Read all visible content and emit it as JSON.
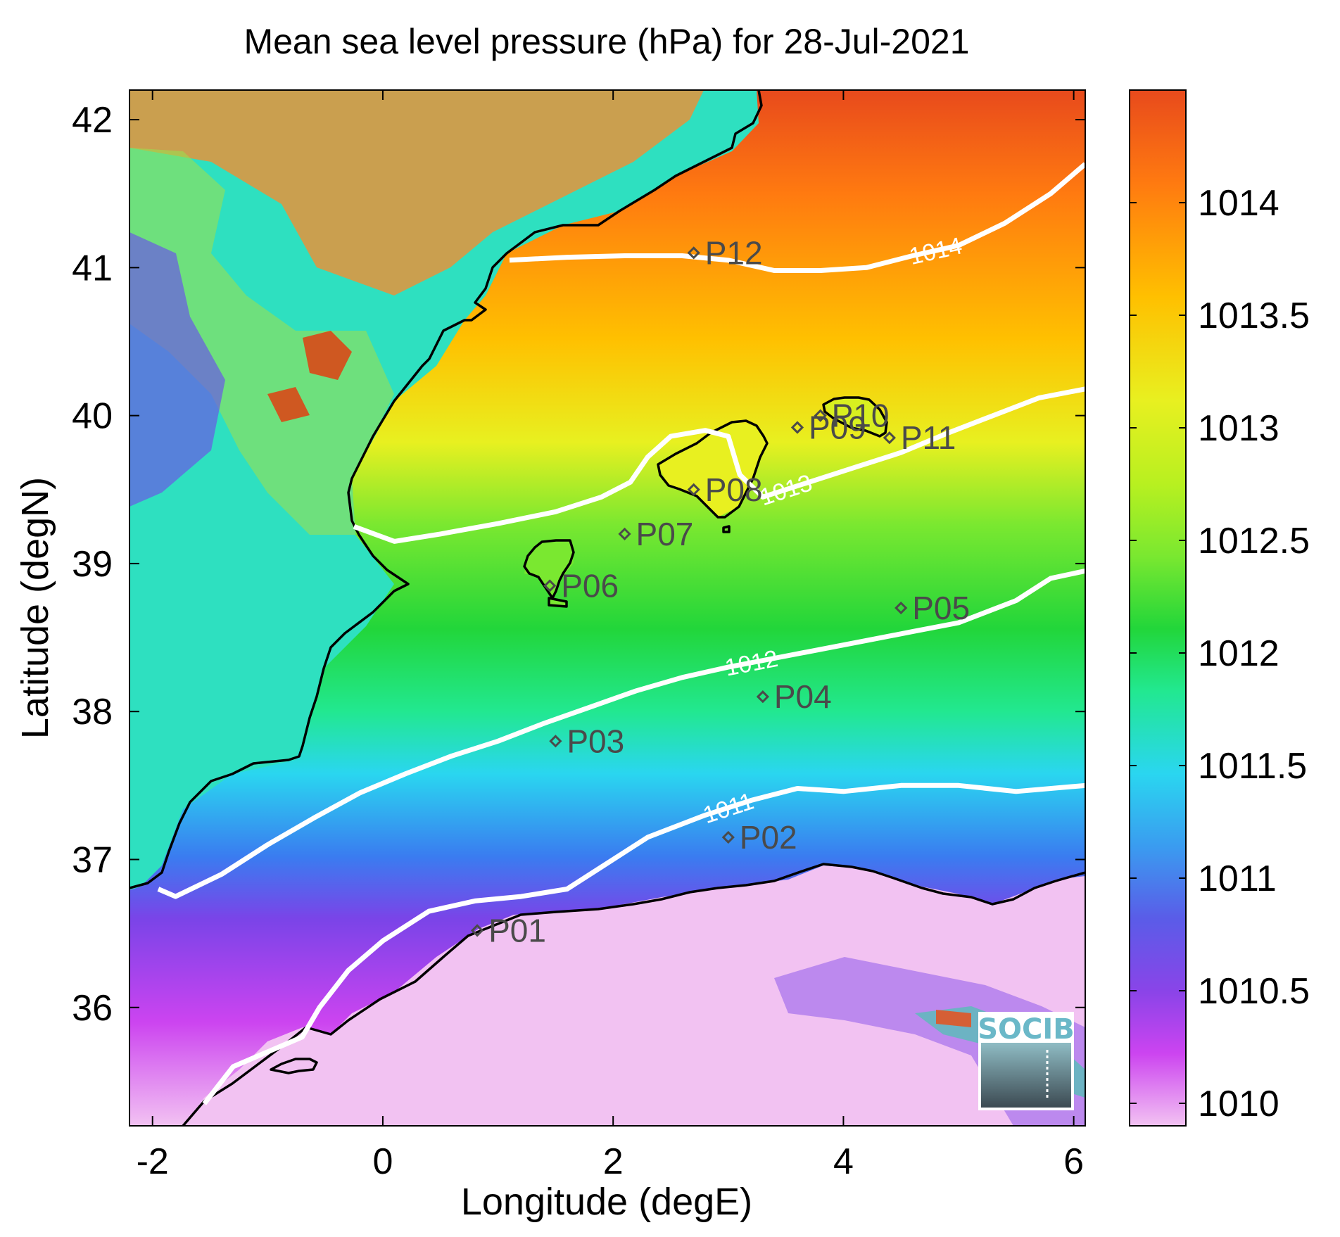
{
  "chart_data": {
    "type": "heatmap",
    "title": "Mean sea level pressure (hPa) for 28-Jul-2021",
    "xlabel": "Longitude (degE)",
    "ylabel": "Latitude (degN)",
    "xlim": [
      -2.2,
      6.1
    ],
    "ylim": [
      35.2,
      42.2
    ],
    "x_ticks": [
      -2,
      0,
      2,
      4,
      6
    ],
    "y_ticks": [
      36,
      37,
      38,
      39,
      40,
      41,
      42
    ],
    "x_tick_labels": [
      "-2",
      "0",
      "2",
      "4",
      "6"
    ],
    "y_tick_labels": [
      "36",
      "37",
      "38",
      "39",
      "40",
      "41",
      "42"
    ],
    "colorbar": {
      "range": [
        1009.9,
        1014.5
      ],
      "ticks": [
        1010,
        1010.5,
        1011,
        1011.5,
        1012,
        1012.5,
        1013,
        1013.5,
        1014
      ],
      "tick_labels": [
        "1010",
        "1010.5",
        "1011",
        "1011.5",
        "1012",
        "1012.5",
        "1013",
        "1013.5",
        "1014"
      ]
    },
    "colormap": [
      "#f2c2f2",
      "#cc44f0",
      "#7a44e8",
      "#3a7cf0",
      "#2ad6f0",
      "#22e890",
      "#22d63a",
      "#7ae830",
      "#e8f020",
      "#ffc000",
      "#ff7a10",
      "#e84a1c"
    ],
    "contours": [
      {
        "level": 1011,
        "label": "1011",
        "points": [
          [
            -1.55,
            35.35
          ],
          [
            -1.3,
            35.6
          ],
          [
            -1.0,
            35.7
          ],
          [
            -0.7,
            35.8
          ],
          [
            -0.55,
            36.0
          ],
          [
            -0.3,
            36.25
          ],
          [
            0,
            36.45
          ],
          [
            0.4,
            36.65
          ],
          [
            0.8,
            36.72
          ],
          [
            1.2,
            36.75
          ],
          [
            1.6,
            36.8
          ],
          [
            1.9,
            36.95
          ],
          [
            2.3,
            37.15
          ],
          [
            2.8,
            37.3
          ],
          [
            3.2,
            37.4
          ],
          [
            3.6,
            37.48
          ],
          [
            4.0,
            37.46
          ],
          [
            4.5,
            37.5
          ],
          [
            5.0,
            37.5
          ],
          [
            5.5,
            37.46
          ],
          [
            6.1,
            37.5
          ]
        ]
      },
      {
        "level": 1012,
        "label": "1012",
        "points": [
          [
            -1.95,
            36.8
          ],
          [
            -1.8,
            36.75
          ],
          [
            -1.4,
            36.9
          ],
          [
            -1.0,
            37.1
          ],
          [
            -0.6,
            37.28
          ],
          [
            -0.2,
            37.45
          ],
          [
            0.2,
            37.58
          ],
          [
            0.6,
            37.7
          ],
          [
            1.0,
            37.8
          ],
          [
            1.4,
            37.92
          ],
          [
            1.8,
            38.03
          ],
          [
            2.2,
            38.14
          ],
          [
            2.6,
            38.23
          ],
          [
            3.0,
            38.3
          ],
          [
            3.4,
            38.36
          ],
          [
            3.8,
            38.42
          ],
          [
            4.2,
            38.48
          ],
          [
            4.6,
            38.54
          ],
          [
            5.0,
            38.6
          ],
          [
            5.5,
            38.75
          ],
          [
            5.8,
            38.9
          ],
          [
            6.1,
            38.95
          ]
        ]
      },
      {
        "level": 1013,
        "label": "1013",
        "points": [
          [
            -0.25,
            39.25
          ],
          [
            0.1,
            39.15
          ],
          [
            0.5,
            39.2
          ],
          [
            1.0,
            39.27
          ],
          [
            1.5,
            39.35
          ],
          [
            1.9,
            39.45
          ],
          [
            2.15,
            39.55
          ],
          [
            2.3,
            39.72
          ],
          [
            2.5,
            39.86
          ],
          [
            2.8,
            39.9
          ],
          [
            3.0,
            39.86
          ],
          [
            3.1,
            39.6
          ],
          [
            3.3,
            39.45
          ],
          [
            3.7,
            39.55
          ],
          [
            4.1,
            39.65
          ],
          [
            4.5,
            39.75
          ],
          [
            4.9,
            39.88
          ],
          [
            5.3,
            40.0
          ],
          [
            5.7,
            40.12
          ],
          [
            6.1,
            40.18
          ]
        ]
      },
      {
        "level": 1014,
        "label": "1014",
        "points": [
          [
            1.1,
            41.05
          ],
          [
            1.6,
            41.07
          ],
          [
            2.1,
            41.08
          ],
          [
            2.6,
            41.08
          ],
          [
            3.0,
            41.05
          ],
          [
            3.4,
            40.98
          ],
          [
            3.8,
            40.98
          ],
          [
            4.2,
            41.0
          ],
          [
            4.6,
            41.08
          ],
          [
            5.0,
            41.15
          ],
          [
            5.4,
            41.3
          ],
          [
            5.8,
            41.5
          ],
          [
            6.1,
            41.7
          ]
        ]
      }
    ],
    "stations": [
      {
        "name": "P01",
        "lon": 0.82,
        "lat": 36.52
      },
      {
        "name": "P02",
        "lon": 3.0,
        "lat": 37.15
      },
      {
        "name": "P03",
        "lon": 1.5,
        "lat": 37.8
      },
      {
        "name": "P04",
        "lon": 3.3,
        "lat": 38.1
      },
      {
        "name": "P05",
        "lon": 4.5,
        "lat": 38.7
      },
      {
        "name": "P06",
        "lon": 1.45,
        "lat": 38.85
      },
      {
        "name": "P07",
        "lon": 2.1,
        "lat": 39.2
      },
      {
        "name": "P08",
        "lon": 2.7,
        "lat": 39.5
      },
      {
        "name": "P09",
        "lon": 3.6,
        "lat": 39.92
      },
      {
        "name": "P10",
        "lon": 3.8,
        "lat": 40.0
      },
      {
        "name": "P11",
        "lon": 4.4,
        "lat": 39.85
      },
      {
        "name": "P12",
        "lon": 2.7,
        "lat": 41.1
      }
    ]
  },
  "logo": {
    "text": "SOCIB"
  }
}
